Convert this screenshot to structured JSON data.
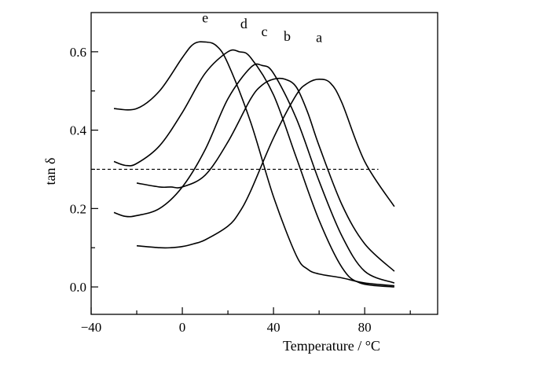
{
  "chart_data": {
    "type": "line",
    "xlabel": "Temperature / °C",
    "ylabel": "tan δ",
    "xlim": [
      -40,
      112
    ],
    "ylim": [
      -0.07,
      0.7
    ],
    "xticks": [
      -40,
      0,
      40,
      80
    ],
    "yticks": [
      0.0,
      0.2,
      0.4,
      0.6
    ],
    "xtick_labels": [
      "−40",
      "0",
      "40",
      "80"
    ],
    "ytick_labels": [
      "0.0",
      "0.2",
      "0.4",
      "0.6"
    ],
    "grid": false,
    "reference_line": {
      "y": 0.3,
      "x_start": -40,
      "x_end": 86,
      "style": "dashed"
    },
    "series": [
      {
        "name": "a",
        "label_pos": [
          60,
          0.625
        ],
        "x": [
          -20,
          -10,
          -5,
          0,
          5,
          10,
          20,
          25,
          30,
          40,
          50,
          55,
          60,
          65,
          70,
          80,
          93
        ],
        "y": [
          0.105,
          0.1,
          0.1,
          0.103,
          0.11,
          0.12,
          0.155,
          0.19,
          0.245,
          0.38,
          0.49,
          0.52,
          0.53,
          0.52,
          0.47,
          0.32,
          0.205
        ]
      },
      {
        "name": "b",
        "label_pos": [
          46,
          0.628
        ],
        "x": [
          -20,
          -10,
          -5,
          0,
          10,
          20,
          30,
          35,
          40,
          45,
          50,
          55,
          60,
          70,
          80,
          93
        ],
        "y": [
          0.265,
          0.255,
          0.255,
          0.255,
          0.285,
          0.37,
          0.48,
          0.515,
          0.53,
          0.53,
          0.51,
          0.445,
          0.36,
          0.21,
          0.11,
          0.04
        ]
      },
      {
        "name": "c",
        "label_pos": [
          36,
          0.64
        ],
        "x": [
          -30,
          -25,
          -20,
          -10,
          0,
          10,
          20,
          30,
          35,
          40,
          50,
          60,
          70,
          80,
          93
        ],
        "y": [
          0.19,
          0.18,
          0.182,
          0.2,
          0.255,
          0.35,
          0.48,
          0.56,
          0.565,
          0.545,
          0.43,
          0.27,
          0.13,
          0.04,
          0.01
        ]
      },
      {
        "name": "d",
        "label_pos": [
          27,
          0.66
        ],
        "x": [
          -30,
          -25,
          -20,
          -10,
          0,
          10,
          20,
          25,
          30,
          40,
          50,
          60,
          70,
          78,
          93
        ],
        "y": [
          0.32,
          0.31,
          0.315,
          0.36,
          0.445,
          0.545,
          0.6,
          0.6,
          0.585,
          0.49,
          0.33,
          0.17,
          0.05,
          0.01,
          0.0
        ]
      },
      {
        "name": "e",
        "label_pos": [
          10,
          0.675
        ],
        "x": [
          -30,
          -20,
          -10,
          0,
          5,
          10,
          15,
          20,
          30,
          40,
          50,
          55,
          60,
          70,
          80,
          93
        ],
        "y": [
          0.455,
          0.455,
          0.5,
          0.585,
          0.62,
          0.625,
          0.615,
          0.57,
          0.42,
          0.23,
          0.08,
          0.045,
          0.033,
          0.023,
          0.01,
          0.003
        ]
      }
    ]
  }
}
